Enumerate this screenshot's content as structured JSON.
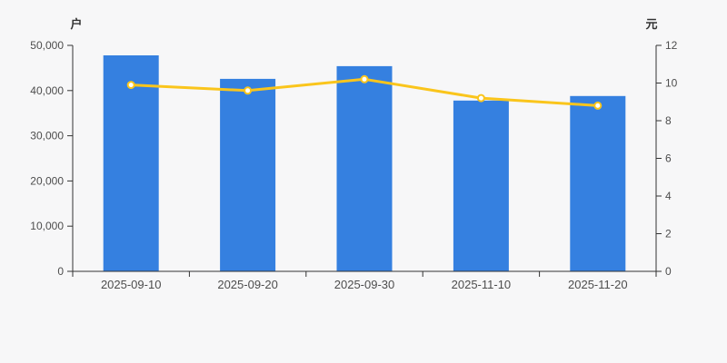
{
  "chart_data": {
    "type": "bar",
    "title": "",
    "categories": [
      "2025-09-10",
      "2025-09-20",
      "2025-09-30",
      "2025-11-10",
      "2025-11-20"
    ],
    "series": [
      {
        "name": "户",
        "type": "bar",
        "axis": "left",
        "values": [
          47800,
          42600,
          45400,
          37800,
          38800
        ]
      },
      {
        "name": "元",
        "type": "line",
        "axis": "right",
        "values": [
          9.9,
          9.6,
          10.2,
          9.2,
          8.8
        ]
      }
    ],
    "left_axis": {
      "name": "户",
      "min": 0,
      "max": 50000,
      "ticks": [
        "0",
        "10,000",
        "20,000",
        "30,000",
        "40,000",
        "50,000"
      ]
    },
    "right_axis": {
      "name": "元",
      "min": 0,
      "max": 12,
      "ticks": [
        "0",
        "2",
        "4",
        "6",
        "8",
        "10",
        "12"
      ]
    },
    "grid": false,
    "legend": "none"
  },
  "colors": {
    "bar": "#3580e0",
    "line": "#fac51c",
    "marker_fill": "#ffffff",
    "axis_line": "#333333",
    "tick_label": "#4d4d4d",
    "background": "#f7f7f8"
  }
}
